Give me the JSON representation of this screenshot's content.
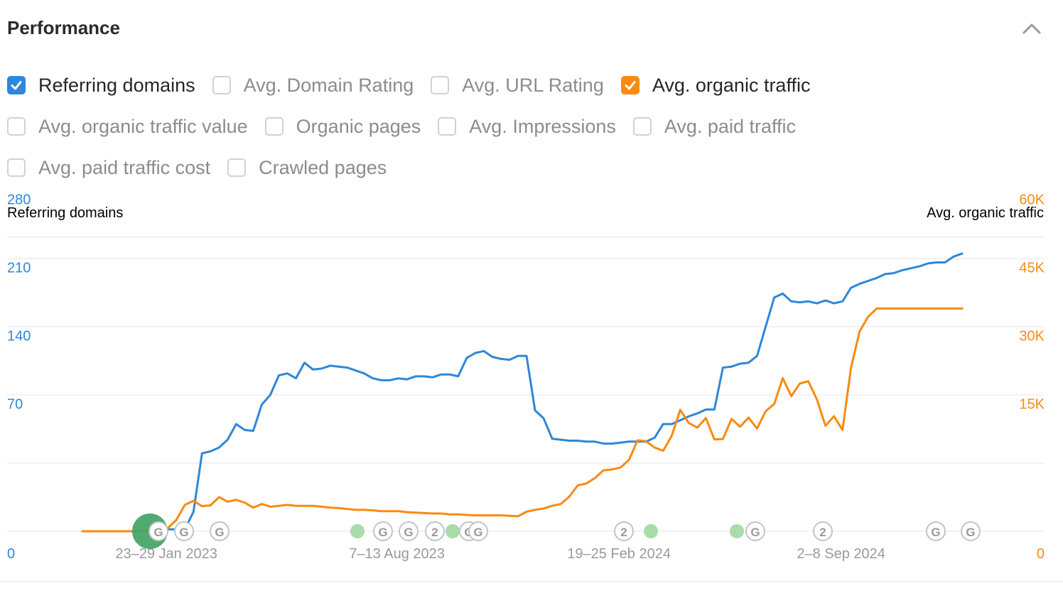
{
  "header": {
    "title": "Performance"
  },
  "options": [
    {
      "label": "Referring domains",
      "checked": true,
      "color": "#2f87d8"
    },
    {
      "label": "Avg. Domain Rating",
      "checked": false
    },
    {
      "label": "Avg. URL Rating",
      "checked": false
    },
    {
      "label": "Avg. organic traffic",
      "checked": true,
      "color": "#f98a11"
    },
    {
      "label": "Avg. organic traffic value",
      "checked": false
    },
    {
      "label": "Organic pages",
      "checked": false
    },
    {
      "label": "Avg. Impressions",
      "checked": false
    },
    {
      "label": "Avg. paid traffic",
      "checked": false
    },
    {
      "label": "Avg. paid traffic cost",
      "checked": false
    },
    {
      "label": "Crawled pages",
      "checked": false
    }
  ],
  "chart_data": {
    "type": "line",
    "grid": true,
    "left_axis": {
      "title": "Referring domains",
      "ticks": [
        "0",
        "70",
        "140",
        "210",
        "280"
      ],
      "range": [
        0,
        280
      ],
      "color": "#2f87d8"
    },
    "right_axis": {
      "title": "Avg. organic traffic",
      "ticks": [
        "0",
        "15K",
        "30K",
        "45K",
        "60K"
      ],
      "range": [
        0,
        60000
      ],
      "color": "#f98a11"
    },
    "x_range": [
      0,
      104
    ],
    "x_ticks": [
      {
        "x": 5,
        "label": "23–29 Jan 2023"
      },
      {
        "x": 32,
        "label": "7–13 Aug 2023"
      },
      {
        "x": 58,
        "label": "19–25 Feb 2024"
      },
      {
        "x": 84,
        "label": "2–8 Sep 2024"
      }
    ],
    "series": [
      {
        "name": "Referring domains",
        "axis": "left",
        "color": "#2f87d8",
        "x": [
          0,
          1,
          2,
          3,
          4,
          5,
          6,
          7,
          8,
          9,
          10,
          11,
          12,
          13,
          14,
          15,
          16,
          17,
          18,
          19,
          20,
          21,
          22,
          23,
          24,
          25,
          26,
          27,
          28,
          29,
          30,
          31,
          32,
          33,
          34,
          35,
          36,
          37,
          38,
          39,
          40,
          41,
          42,
          43,
          44,
          45,
          46,
          47,
          48,
          49,
          50,
          51,
          52,
          53,
          54,
          55,
          56,
          57,
          58,
          59,
          60,
          61,
          62,
          63,
          64,
          65,
          66,
          67,
          68,
          69,
          70,
          71,
          72,
          73,
          74,
          75,
          76,
          77,
          78,
          79,
          80,
          81,
          82,
          83,
          84,
          85,
          86,
          87,
          88,
          89,
          90,
          91,
          92,
          93,
          94,
          95,
          96,
          97,
          98,
          99,
          100,
          101,
          102,
          103,
          104
        ],
        "values": [
          0,
          0,
          0,
          0,
          0,
          0,
          0,
          0,
          1,
          1,
          2,
          2,
          2,
          20,
          80,
          82,
          86,
          94,
          110,
          104,
          103,
          130,
          140,
          160,
          162,
          157,
          173,
          166,
          167,
          170,
          169,
          168,
          165,
          162,
          157,
          155,
          155,
          157,
          156,
          159,
          159,
          158,
          161,
          161,
          159,
          178,
          183,
          185,
          179,
          177,
          176,
          180,
          180,
          124,
          116,
          95,
          94,
          93,
          93,
          92,
          92,
          90,
          90,
          91,
          92,
          92,
          92,
          96,
          110,
          110,
          114,
          118,
          121,
          125,
          125,
          168,
          169,
          172,
          173,
          180,
          210,
          240,
          244,
          236,
          235,
          236,
          234,
          237,
          234,
          236,
          250,
          254,
          257,
          260,
          264,
          265,
          268,
          270,
          272,
          275,
          276,
          276,
          282,
          285,
          287
        ],
        "end_x": 103
      },
      {
        "name": "Avg. organic traffic",
        "axis": "right",
        "color": "#f98a11",
        "x": [
          0,
          1,
          2,
          3,
          4,
          5,
          6,
          7,
          8,
          9,
          10,
          11,
          12,
          13,
          14,
          15,
          16,
          17,
          18,
          19,
          20,
          21,
          22,
          23,
          24,
          25,
          26,
          27,
          28,
          29,
          30,
          31,
          32,
          33,
          34,
          35,
          36,
          37,
          38,
          39,
          40,
          41,
          42,
          43,
          44,
          45,
          46,
          47,
          48,
          49,
          50,
          51,
          52,
          53,
          54,
          55,
          56,
          57,
          58,
          59,
          60,
          61,
          62,
          63,
          64,
          65,
          66,
          67,
          68,
          69,
          70,
          71,
          72,
          73,
          74,
          75,
          76,
          77,
          78,
          79,
          80,
          81,
          82,
          83,
          84,
          85,
          86,
          87,
          88,
          89,
          90,
          91,
          92,
          93,
          94,
          95,
          96,
          97,
          98,
          99,
          100,
          101,
          102,
          103,
          104
        ],
        "values": [
          0,
          0,
          0,
          0,
          0,
          0,
          0,
          0,
          0,
          200,
          700,
          2500,
          5800,
          6700,
          5500,
          5700,
          7500,
          6500,
          6900,
          6300,
          5200,
          6000,
          5400,
          5600,
          5800,
          5600,
          5600,
          5600,
          5400,
          5200,
          5100,
          4900,
          4700,
          4700,
          4600,
          4400,
          4400,
          4400,
          4200,
          4100,
          4000,
          3900,
          3900,
          3700,
          3700,
          3600,
          3500,
          3500,
          3500,
          3500,
          3400,
          3300,
          4300,
          4700,
          5000,
          5600,
          6000,
          7600,
          10100,
          10500,
          11700,
          13400,
          13600,
          14000,
          15700,
          20000,
          19800,
          18400,
          17700,
          21000,
          26700,
          23800,
          22800,
          24900,
          20200,
          20300,
          24700,
          23000,
          25000,
          22600,
          26400,
          28000,
          33700,
          29700,
          32500,
          33000,
          29000,
          23200,
          25300,
          22300,
          36000,
          44000,
          47200,
          49000,
          49000,
          49000,
          49000,
          49000,
          49000,
          49000,
          49000,
          49000,
          49000,
          49000,
          49000
        ],
        "end_x": 103
      }
    ],
    "event_markers": [
      {
        "x": 7,
        "label": "G"
      },
      {
        "x": 9.5,
        "label": "G"
      },
      {
        "x": 13,
        "label": "G"
      },
      {
        "x": 34,
        "label": "G"
      },
      {
        "x": 36.5,
        "label": "G"
      },
      {
        "x": 39,
        "label": "2"
      },
      {
        "x": 43,
        "label": "G"
      },
      {
        "x": 44,
        "label": "G"
      },
      {
        "x": 62,
        "label": "2"
      },
      {
        "x": 75.5,
        "label": "G"
      },
      {
        "x": 82,
        "label": "2"
      },
      {
        "x": 93,
        "label": "G"
      },
      {
        "x": 96.5,
        "label": "G"
      }
    ]
  }
}
